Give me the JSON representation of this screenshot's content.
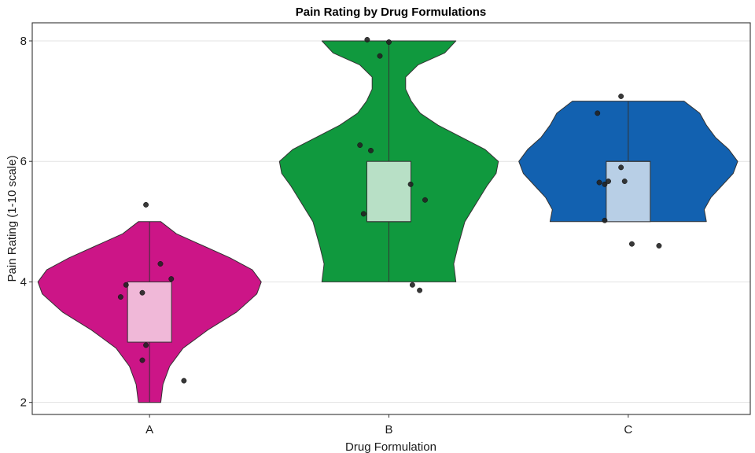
{
  "chart_data": {
    "type": "violin",
    "title": "Pain Rating by Drug Formulations",
    "xlabel": "Drug Formulation",
    "ylabel": "Pain Rating (1-10 scale)",
    "ylim": [
      1.8,
      8.3
    ],
    "yticks": [
      2,
      4,
      6,
      8
    ],
    "grid": "horizontal",
    "legend": "none",
    "categories": [
      "A",
      "B",
      "C"
    ],
    "groups": [
      {
        "name": "A",
        "color": "#CC1587",
        "box_color": "#F0B8D8",
        "box": {
          "min": 2,
          "q1": 3,
          "median": 4,
          "q3": 4,
          "max": 5
        },
        "violin_profile": [
          [
            2.0,
            0.1
          ],
          [
            2.3,
            0.12
          ],
          [
            2.6,
            0.18
          ],
          [
            2.9,
            0.3
          ],
          [
            3.2,
            0.52
          ],
          [
            3.5,
            0.78
          ],
          [
            3.8,
            0.96
          ],
          [
            4.0,
            1.0
          ],
          [
            4.2,
            0.92
          ],
          [
            4.4,
            0.72
          ],
          [
            4.6,
            0.48
          ],
          [
            4.8,
            0.24
          ],
          [
            5.0,
            0.1
          ]
        ],
        "points": [
          [
            -0.16,
            3.75
          ],
          [
            -0.13,
            3.95
          ],
          [
            -0.04,
            3.82
          ],
          [
            -0.02,
            2.95
          ],
          [
            -0.04,
            2.7
          ],
          [
            0.06,
            4.3
          ],
          [
            0.12,
            4.05
          ],
          [
            0.19,
            2.36
          ],
          [
            -0.02,
            5.28
          ]
        ]
      },
      {
        "name": "B",
        "color": "#10993E",
        "box_color": "#B8E0C6",
        "box": {
          "min": 4,
          "q1": 5,
          "median": 5,
          "q3": 6,
          "max": 8
        },
        "violin_profile": [
          [
            4.0,
            0.6
          ],
          [
            4.3,
            0.58
          ],
          [
            4.6,
            0.62
          ],
          [
            5.0,
            0.68
          ],
          [
            5.3,
            0.78
          ],
          [
            5.6,
            0.88
          ],
          [
            5.8,
            0.96
          ],
          [
            6.0,
            0.98
          ],
          [
            6.2,
            0.86
          ],
          [
            6.4,
            0.65
          ],
          [
            6.6,
            0.44
          ],
          [
            6.8,
            0.28
          ],
          [
            7.0,
            0.2
          ],
          [
            7.2,
            0.15
          ],
          [
            7.4,
            0.15
          ],
          [
            7.6,
            0.26
          ],
          [
            7.8,
            0.5
          ],
          [
            8.0,
            0.6
          ]
        ],
        "points": [
          [
            -0.16,
            6.27
          ],
          [
            -0.1,
            6.18
          ],
          [
            -0.14,
            5.13
          ],
          [
            -0.12,
            8.02
          ],
          [
            -0.05,
            7.75
          ],
          [
            0.0,
            7.98
          ],
          [
            0.12,
            5.62
          ],
          [
            0.2,
            5.36
          ],
          [
            0.13,
            3.95
          ],
          [
            0.17,
            3.86
          ]
        ]
      },
      {
        "name": "C",
        "color": "#1261B0",
        "box_color": "#B8CFE6",
        "box": {
          "min": 5,
          "q1": 5,
          "median": 6,
          "q3": 6,
          "max": 7
        },
        "violin_profile": [
          [
            5.0,
            0.7
          ],
          [
            5.2,
            0.68
          ],
          [
            5.4,
            0.74
          ],
          [
            5.6,
            0.84
          ],
          [
            5.8,
            0.94
          ],
          [
            6.0,
            0.98
          ],
          [
            6.2,
            0.9
          ],
          [
            6.4,
            0.78
          ],
          [
            6.6,
            0.7
          ],
          [
            6.8,
            0.64
          ],
          [
            7.0,
            0.5
          ]
        ],
        "points": [
          [
            -0.17,
            6.8
          ],
          [
            -0.13,
            5.62
          ],
          [
            -0.11,
            5.67
          ],
          [
            -0.13,
            5.02
          ],
          [
            -0.16,
            5.65
          ],
          [
            -0.04,
            7.08
          ],
          [
            -0.04,
            5.9
          ],
          [
            -0.02,
            5.67
          ],
          [
            0.02,
            4.63
          ],
          [
            0.17,
            4.6
          ]
        ]
      }
    ]
  }
}
